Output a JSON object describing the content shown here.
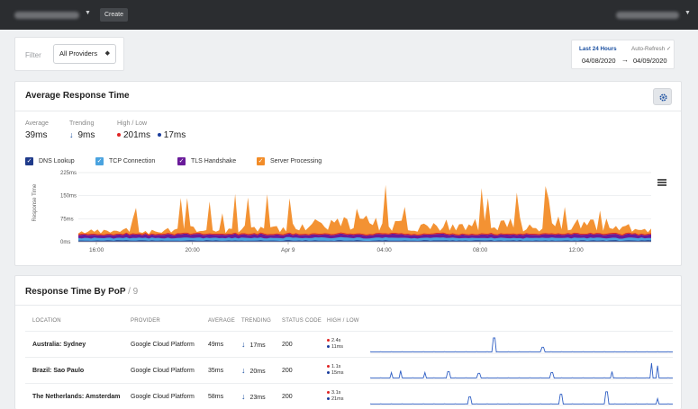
{
  "topbar": {
    "create_label": "Create"
  },
  "filter": {
    "label": "Filter",
    "provider_value": "All Providers"
  },
  "date_range": {
    "period": "Last 24 Hours",
    "auto_refresh": "Auto-Refresh ✓",
    "from": "04/08/2020",
    "arrow": "→",
    "to": "04/09/2020"
  },
  "response_card": {
    "title": "Average Response Time",
    "stats": {
      "average_label": "Average",
      "average_value": "39ms",
      "trending_label": "Trending",
      "trending_value": "9ms",
      "highlow_label": "High / Low",
      "high_value": "201ms",
      "low_value": "17ms"
    },
    "legend": [
      {
        "label": "DNS Lookup",
        "color": "#1f3a8a"
      },
      {
        "label": "TCP Connection",
        "color": "#4aa3df"
      },
      {
        "label": "TLS Handshake",
        "color": "#6a1b9a"
      },
      {
        "label": "Server Processing",
        "color": "#f28c28"
      }
    ]
  },
  "chart_data": {
    "type": "area",
    "title": "",
    "xlabel": "",
    "ylabel": "Response Time",
    "ylim": [
      0,
      225
    ],
    "y_ticks": [
      "0ms",
      "75ms",
      "150ms",
      "225ms"
    ],
    "x_ticks": [
      "16:00",
      "20:00",
      "Apr 9",
      "04:00",
      "08:00",
      "12:00"
    ],
    "series": [
      {
        "name": "DNS Lookup",
        "values": [
          3,
          3,
          3,
          3,
          3,
          3,
          3,
          3
        ]
      },
      {
        "name": "TCP Connection",
        "values": [
          7,
          7,
          7,
          8,
          7,
          7,
          7,
          7
        ]
      },
      {
        "name": "TLS Handshake",
        "values": [
          8,
          9,
          9,
          8,
          9,
          8,
          9,
          9
        ]
      },
      {
        "name": "Server Processing",
        "values": [
          15,
          25,
          30,
          60,
          45,
          50,
          55,
          20
        ]
      }
    ],
    "spikes": [
      {
        "x_pos": "Apr 9",
        "value": 115
      },
      {
        "x_pos": "04:00",
        "value": 160
      },
      {
        "x_pos": "08:00",
        "value": 150
      }
    ]
  },
  "pop_card": {
    "title": "Response Time By PoP",
    "count": "/ 9",
    "columns": [
      "LOCATION",
      "PROVIDER",
      "AVERAGE",
      "TRENDING",
      "STATUS CODE",
      "HIGH / LOW"
    ],
    "rows": [
      {
        "location": "Australia: Sydney",
        "provider": "Google Cloud Platform",
        "average": "49ms",
        "trending": "17ms",
        "status": "200",
        "high": "2.4s",
        "low": "11ms"
      },
      {
        "location": "Brazil: Sao Paulo",
        "provider": "Google Cloud Platform",
        "average": "35ms",
        "trending": "20ms",
        "status": "200",
        "high": "1.1s",
        "low": "15ms"
      },
      {
        "location": "The Netherlands: Amsterdam",
        "provider": "Google Cloud Platform",
        "average": "58ms",
        "trending": "23ms",
        "status": "200",
        "high": "3.1s",
        "low": "21ms"
      }
    ]
  },
  "colors": {
    "high": "#e02424",
    "low": "#1a3c9c",
    "accent": "#1a4fa0"
  }
}
